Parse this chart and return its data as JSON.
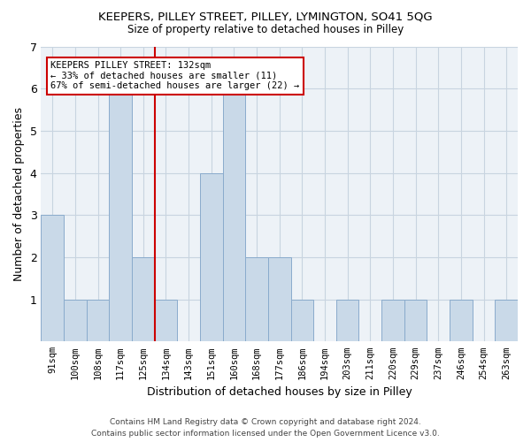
{
  "title": "KEEPERS, PILLEY STREET, PILLEY, LYMINGTON, SO41 5QG",
  "subtitle": "Size of property relative to detached houses in Pilley",
  "xlabel": "Distribution of detached houses by size in Pilley",
  "ylabel": "Number of detached properties",
  "categories": [
    "91sqm",
    "100sqm",
    "108sqm",
    "117sqm",
    "125sqm",
    "134sqm",
    "143sqm",
    "151sqm",
    "160sqm",
    "168sqm",
    "177sqm",
    "186sqm",
    "194sqm",
    "203sqm",
    "211sqm",
    "220sqm",
    "229sqm",
    "237sqm",
    "246sqm",
    "254sqm",
    "263sqm"
  ],
  "values": [
    3,
    1,
    1,
    6,
    2,
    1,
    0,
    4,
    6,
    2,
    2,
    1,
    0,
    1,
    0,
    1,
    1,
    0,
    1,
    0,
    1
  ],
  "bar_color": "#c9d9e8",
  "bar_edge_color": "#8aabcc",
  "reference_line_index": 5,
  "annotation_title": "KEEPERS PILLEY STREET: 132sqm",
  "annotation_line1": "← 33% of detached houses are smaller (11)",
  "annotation_line2": "67% of semi-detached houses are larger (22) →",
  "annotation_box_color": "#ffffff",
  "annotation_box_edge": "#cc0000",
  "reference_line_color": "#cc0000",
  "ylim": [
    0,
    7
  ],
  "yticks": [
    0,
    1,
    2,
    3,
    4,
    5,
    6,
    7
  ],
  "footer1": "Contains HM Land Registry data © Crown copyright and database right 2024.",
  "footer2": "Contains public sector information licensed under the Open Government Licence v3.0.",
  "bg_color": "#edf2f7",
  "grid_color": "#c8d4e0"
}
